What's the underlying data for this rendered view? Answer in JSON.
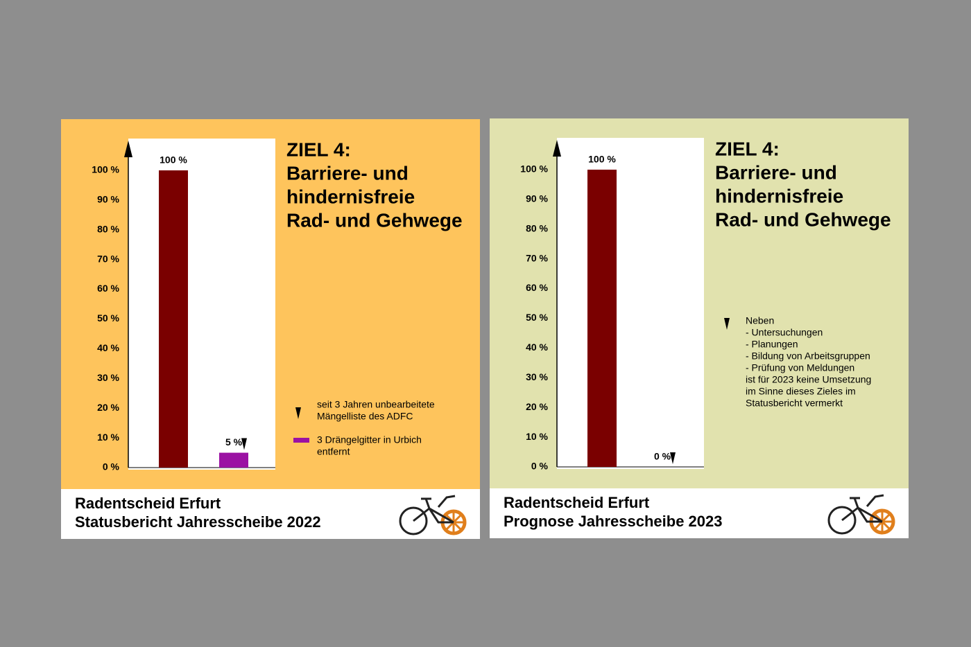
{
  "chart_data": [
    {
      "type": "bar",
      "title": [
        "ZIEL 4:",
        "Barriere- und",
        "hindernisfreie",
        "Rad- und Gehwege"
      ],
      "categories": [
        null,
        null
      ],
      "values": [
        100,
        5
      ],
      "value_labels": [
        "100 %",
        "5 %"
      ],
      "colors": [
        "#7a0000",
        "#9b12a3"
      ],
      "ylim": [
        0,
        110
      ],
      "yticks": [
        {
          "value": 0,
          "label": "0 %"
        },
        {
          "value": 10,
          "label": "10 %"
        },
        {
          "value": 20,
          "label": "20 %"
        },
        {
          "value": 30,
          "label": "30 %"
        },
        {
          "value": 40,
          "label": "40 %"
        },
        {
          "value": 50,
          "label": "50 %"
        },
        {
          "value": 60,
          "label": "60 %"
        },
        {
          "value": 70,
          "label": "70 %"
        },
        {
          "value": 80,
          "label": "80 %"
        },
        {
          "value": 90,
          "label": "90 %"
        },
        {
          "value": 100,
          "label": "100 %"
        }
      ],
      "legend": [
        {
          "label": [
            "seit 3 Jahren unbearbeitete",
            "Mängelliste des ADFC"
          ]
        },
        {
          "label": [
            "3 Drängelgitter in Urbich",
            "entfernt"
          ],
          "color": "#9b12a3"
        }
      ],
      "footer": [
        "Radentscheid Erfurt",
        "Statusbericht Jahresscheibe 2022"
      ],
      "background": "#fec45c",
      "footer_color": "#d4930c"
    },
    {
      "type": "bar",
      "title": [
        "ZIEL 4:",
        "Barriere- und",
        "hindernisfreie",
        "Rad- und Gehwege"
      ],
      "categories": [
        null,
        null
      ],
      "values": [
        100,
        0
      ],
      "value_labels": [
        "100 %",
        "0 %"
      ],
      "colors": [
        "#7a0000",
        "#7a0000"
      ],
      "ylim": [
        0,
        110
      ],
      "yticks": [
        {
          "value": 0,
          "label": "0 %"
        },
        {
          "value": 10,
          "label": "10 %"
        },
        {
          "value": 20,
          "label": "20 %"
        },
        {
          "value": 30,
          "label": "30 %"
        },
        {
          "value": 40,
          "label": "40 %"
        },
        {
          "value": 50,
          "label": "50 %"
        },
        {
          "value": 60,
          "label": "60 %"
        },
        {
          "value": 70,
          "label": "70 %"
        },
        {
          "value": 80,
          "label": "80 %"
        },
        {
          "value": 90,
          "label": "90 %"
        },
        {
          "value": 100,
          "label": "100 %"
        }
      ],
      "annotation": [
        "Neben",
        "- Untersuchungen",
        "- Planungen",
        "- Bildung von Arbeitsgruppen",
        "- Prüfung von Meldungen",
        "ist für 2023 keine Umsetzung",
        "im Sinne dieses Zieles im",
        "Statusbericht vermerkt"
      ],
      "footer": [
        "Radentscheid Erfurt",
        "Prognose Jahresscheibe 2023"
      ],
      "background": "#e1e2ae",
      "footer_color": "#6b6b50"
    }
  ]
}
